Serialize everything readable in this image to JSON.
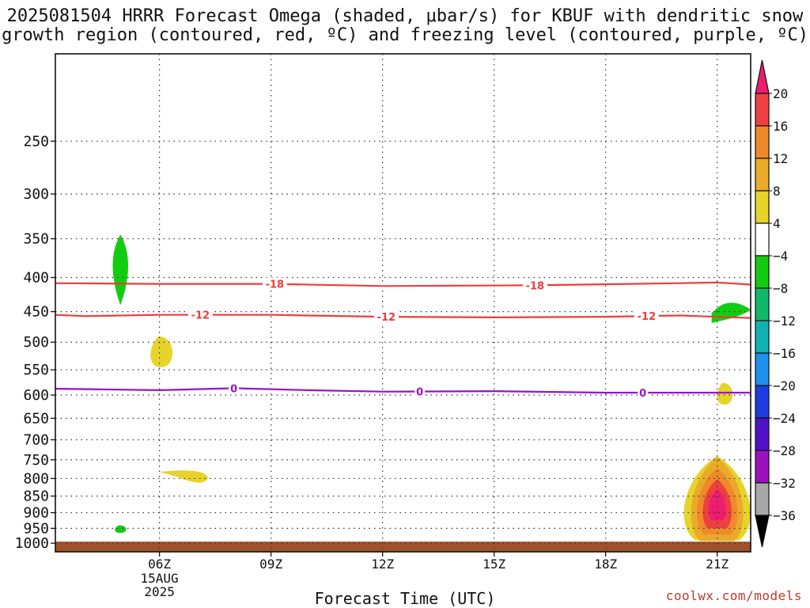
{
  "title": {
    "line1": "2025081504 HRRR Forecast Omega (shaded, μbar/s) for KBUF with dendritic snow",
    "line2": "growth region (contoured, red, ºC) and freezing level (contoured, purple, ºC)"
  },
  "xaxis_title": "Forecast Time (UTC)",
  "credit": "coolwx.com/models",
  "chart_data": {
    "type": "time-height cross section",
    "xlabel": "Forecast Time (UTC)",
    "ylabel": "",
    "x_range_hours_utc": [
      3.2,
      21.9
    ],
    "y_range_hPa": [
      1030,
      185
    ],
    "y_scale": "log-pressure",
    "x_ticks": [
      {
        "hour": 6,
        "label": "06Z",
        "sublabel": [
          "15AUG",
          "2025"
        ]
      },
      {
        "hour": 9,
        "label": "09Z"
      },
      {
        "hour": 12,
        "label": "12Z"
      },
      {
        "hour": 15,
        "label": "15Z"
      },
      {
        "hour": 18,
        "label": "18Z"
      },
      {
        "hour": 21,
        "label": "21Z"
      }
    ],
    "y_ticks": [
      250,
      300,
      350,
      400,
      450,
      500,
      550,
      600,
      650,
      700,
      750,
      800,
      850,
      900,
      950,
      1000
    ],
    "grid": true,
    "colorbar": {
      "levels": [
        20,
        16,
        12,
        8,
        4,
        -4,
        -8,
        -12,
        -16,
        -20,
        -24,
        -28,
        -32,
        -36
      ],
      "colors": [
        "#ee1c6e",
        "#ee4040",
        "#ee8a2a",
        "#eaaa2a",
        "#e6d42a",
        "#ffffff",
        "#12cc12",
        "#12b86a",
        "#12b2b2",
        "#1e90ee",
        "#1e3ce0",
        "#5012c8",
        "#9a12c0",
        "#a8a8a8",
        "#000000"
      ]
    },
    "contours": [
      {
        "name": "dendritic snow growth region",
        "color": "#ee3c3c",
        "level": -18,
        "points": [
          [
            3.2,
            408
          ],
          [
            6,
            409
          ],
          [
            9,
            409
          ],
          [
            12,
            412
          ],
          [
            16,
            411
          ],
          [
            20,
            408
          ],
          [
            21,
            407
          ],
          [
            21.9,
            410
          ]
        ],
        "labels": [
          {
            "hour": 9.1,
            "text": "-18"
          },
          {
            "hour": 16.1,
            "text": "-18"
          }
        ]
      },
      {
        "name": "dendritic snow growth region",
        "color": "#ee3c3c",
        "level": -12,
        "points": [
          [
            3.2,
            455
          ],
          [
            4,
            457
          ],
          [
            6,
            455
          ],
          [
            9,
            455
          ],
          [
            12,
            458
          ],
          [
            15,
            459
          ],
          [
            18,
            458
          ],
          [
            20,
            456
          ],
          [
            21.9,
            460
          ]
        ],
        "labels": [
          {
            "hour": 7.1,
            "text": "-12"
          },
          {
            "hour": 12.1,
            "text": "-12"
          },
          {
            "hour": 19.1,
            "text": "-12"
          }
        ]
      },
      {
        "name": "freezing level",
        "color": "#9a12c8",
        "level": 0,
        "points": [
          [
            3.2,
            587
          ],
          [
            6,
            590
          ],
          [
            8,
            586
          ],
          [
            10,
            590
          ],
          [
            12,
            593
          ],
          [
            15,
            592
          ],
          [
            18,
            595
          ],
          [
            21.9,
            595
          ]
        ],
        "labels": [
          {
            "hour": 8,
            "text": "0"
          },
          {
            "hour": 13,
            "text": "0"
          },
          {
            "hour": 19,
            "text": "0"
          }
        ]
      }
    ],
    "shaded_regions": [
      {
        "value": -4,
        "color": "#12cc12",
        "hour": 4.95,
        "p_top": 345,
        "p_bottom": 440
      },
      {
        "value": -4,
        "color": "#12cc12",
        "hour": 4.95,
        "p_top": 940,
        "p_bottom": 965
      },
      {
        "value": 4,
        "color": "#e6d42a",
        "hour": 6.05,
        "p_top": 490,
        "p_bottom": 545
      },
      {
        "value": 4,
        "color": "#e6d42a",
        "hour": 6.8,
        "p_top": 780,
        "p_bottom": 810
      },
      {
        "value": -4,
        "color": "#12cc12",
        "hour": 21.0,
        "p_top": 432,
        "p_bottom": 468
      },
      {
        "value": 4,
        "color": "#e6d42a",
        "hour": 21.2,
        "p_top": 575,
        "p_bottom": 620
      },
      {
        "value": 20,
        "color": "#ee1c6e",
        "hour": 21.0,
        "p_top": 740,
        "p_bottom": 990,
        "peak_p": 880
      }
    ],
    "surface": {
      "color": "#a0522d",
      "p_top": 1000
    }
  }
}
